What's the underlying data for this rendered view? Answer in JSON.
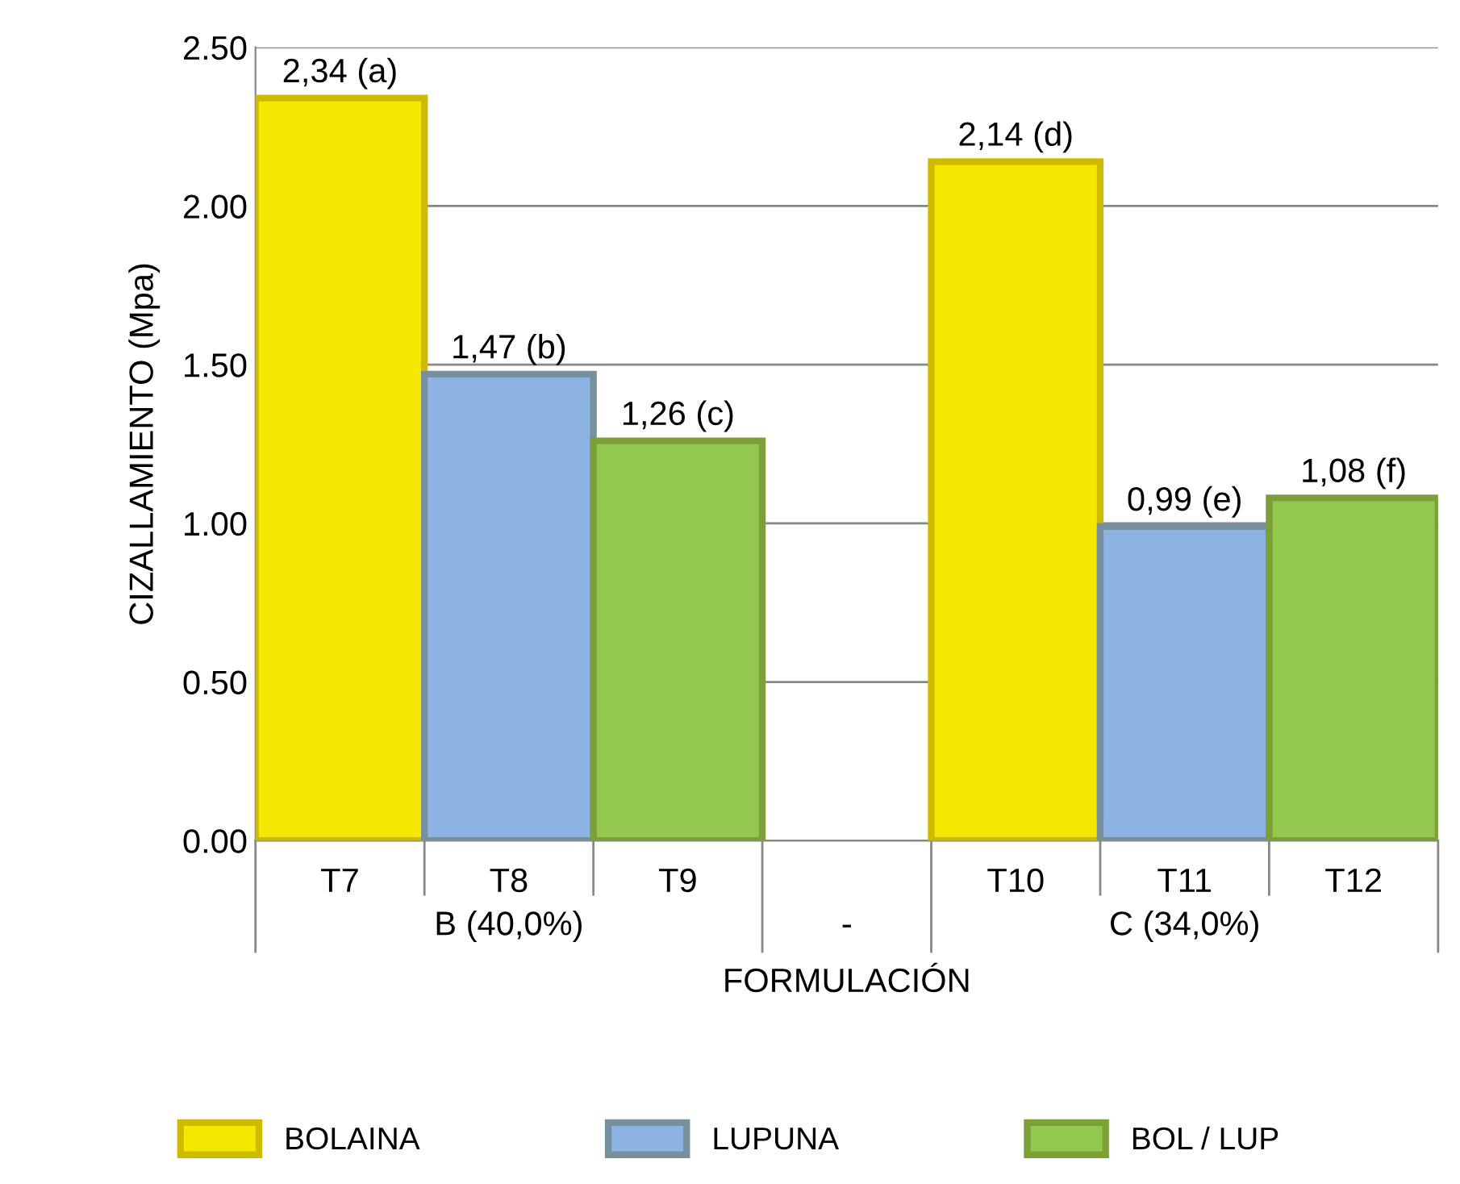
{
  "chart_data": {
    "type": "bar",
    "xlabel": "FORMULACIÓN",
    "ylabel": "CIZALLAMIENTO (Mpa)",
    "categories": [
      "T7",
      "T8",
      "T9",
      null,
      "T10",
      "T11",
      "T12"
    ],
    "series": [
      {
        "name": "BOLAINA",
        "color": "#f5e800",
        "values": [
          2.34,
          null,
          null,
          null,
          2.14,
          null,
          null
        ],
        "value_labels": [
          "2,34 (a)",
          null,
          null,
          null,
          "2,14 (d)",
          null,
          null
        ]
      },
      {
        "name": "LUPUNA",
        "color": "#8db3e2",
        "values": [
          null,
          1.47,
          null,
          null,
          null,
          0.99,
          null
        ],
        "value_labels": [
          null,
          "1,47 (b)",
          null,
          null,
          null,
          "0,99 (e)",
          null
        ]
      },
      {
        "name": "BOL / LUP",
        "color": "#92c84e",
        "values": [
          null,
          null,
          1.26,
          null,
          null,
          null,
          1.08
        ],
        "value_labels": [
          null,
          null,
          "1,26 (c)",
          null,
          null,
          null,
          "1,08 (f)"
        ]
      }
    ],
    "annotations": [
      "B (40,0%)",
      "-",
      "C (34,0%)"
    ],
    "ylim": [
      0,
      2.5
    ],
    "yticks": [
      {
        "value": 0,
        "label": "0.00"
      },
      {
        "value": 0.5,
        "label": "0.50"
      },
      {
        "value": 1,
        "label": "1.00"
      },
      {
        "value": 1.5,
        "label": "1.50"
      },
      {
        "value": 2,
        "label": "2.00"
      },
      {
        "value": 2.5,
        "label": "2.50"
      }
    ],
    "grid": "y",
    "legend": "bottom"
  }
}
